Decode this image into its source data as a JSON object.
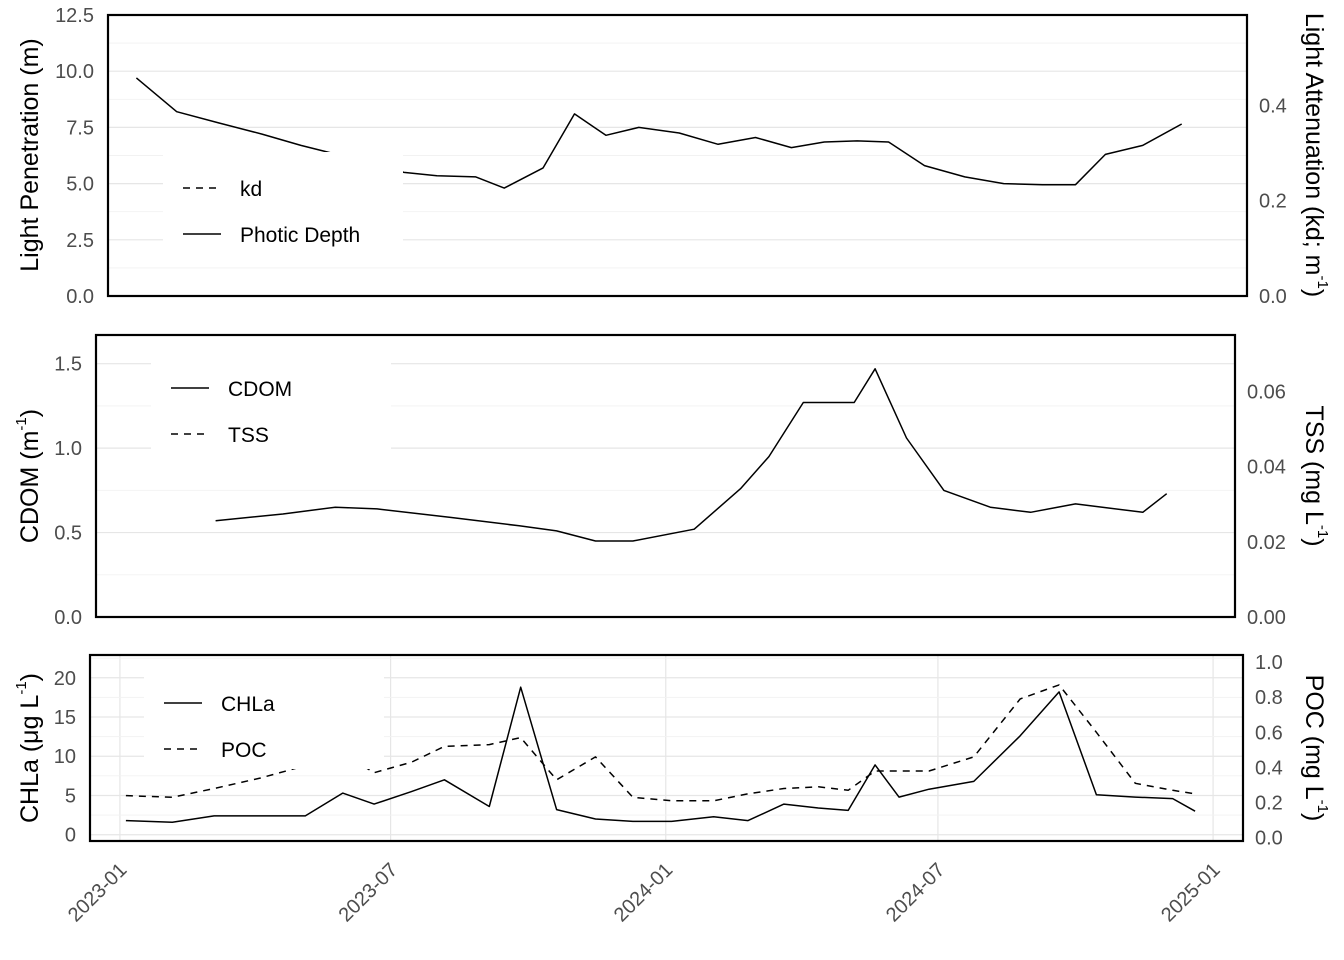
{
  "chart_data": [
    {
      "type": "line",
      "ylabel": "Light Penetration (m)",
      "y2label": "Light Attenuation (kd; m⁻¹)",
      "ylim": [
        0,
        12.5
      ],
      "y2lim": [
        0,
        0.59
      ],
      "yticks": [
        0.0,
        2.5,
        5.0,
        7.5,
        10.0,
        12.5
      ],
      "yticklabels": [
        "0.0",
        "2.5",
        "5.0",
        "7.5",
        "10.0",
        "12.5"
      ],
      "y2ticks": [
        0.0,
        0.2,
        0.4
      ],
      "y2ticklabels": [
        "0.0",
        "0.2",
        "0.4"
      ],
      "xticks_visible": false,
      "grid": true,
      "legend": {
        "position": "left-bottom",
        "entries": [
          {
            "label": "kd",
            "style": "dashed"
          },
          {
            "label": "Photic Depth",
            "style": "solid"
          }
        ]
      },
      "series": [
        {
          "name": "Photic Depth",
          "axis": "left",
          "style": "solid",
          "x": [
            "2023-01-12",
            "2023-02-08",
            "2023-03-08",
            "2023-04-06",
            "2023-05-02",
            "2023-05-26",
            "2023-06-17",
            "2023-07-10",
            "2023-08-01",
            "2023-08-27",
            "2023-09-15",
            "2023-10-11",
            "2023-11-01",
            "2023-11-22",
            "2023-12-14",
            "2024-01-10",
            "2024-02-05",
            "2024-03-01",
            "2024-03-25",
            "2024-04-16",
            "2024-05-08",
            "2024-05-29",
            "2024-06-22",
            "2024-07-19",
            "2024-08-14",
            "2024-09-09",
            "2024-10-01",
            "2024-10-21",
            "2024-11-15",
            "2024-12-11"
          ],
          "y": [
            9.7,
            8.2,
            7.7,
            7.2,
            6.7,
            6.3,
            5.9,
            5.5,
            5.35,
            5.3,
            4.8,
            5.7,
            8.1,
            7.15,
            7.5,
            7.25,
            6.75,
            7.05,
            6.6,
            6.85,
            6.9,
            6.85,
            5.8,
            5.3,
            5.0,
            4.95,
            4.95,
            6.3,
            6.7,
            7.65
          ]
        },
        {
          "name": "kd",
          "axis": "right",
          "style": "dashed",
          "x": [],
          "y": []
        }
      ]
    },
    {
      "type": "line",
      "ylabel": "CDOM (m⁻¹)",
      "y2label": "TSS (mg L⁻¹)",
      "ylim": [
        0,
        1.67
      ],
      "y2lim": [
        0,
        0.075
      ],
      "yticks": [
        0.0,
        0.5,
        1.0,
        1.5
      ],
      "yticklabels": [
        "0.0",
        "0.5",
        "1.0",
        "1.5"
      ],
      "y2ticks": [
        0.0,
        0.02,
        0.04,
        0.06
      ],
      "y2ticklabels": [
        "0.00",
        "0.02",
        "0.04",
        "0.06"
      ],
      "xticks_visible": false,
      "grid": true,
      "legend": {
        "position": "top-left",
        "entries": [
          {
            "label": "CDOM",
            "style": "solid"
          },
          {
            "label": "TSS",
            "style": "dashed"
          }
        ]
      },
      "series": [
        {
          "name": "CDOM",
          "axis": "left",
          "style": "solid",
          "x": [
            "2023-03-06",
            "2023-04-20",
            "2023-05-25",
            "2023-06-22",
            "2023-08-10",
            "2023-09-25",
            "2023-10-20",
            "2023-11-15",
            "2023-12-10",
            "2024-01-20",
            "2024-02-20",
            "2024-03-10",
            "2024-04-02",
            "2024-04-16",
            "2024-05-06",
            "2024-05-20",
            "2024-06-10",
            "2024-07-05",
            "2024-08-05",
            "2024-09-01",
            "2024-10-01",
            "2024-11-15",
            "2024-12-01"
          ],
          "y": [
            0.57,
            0.61,
            0.65,
            0.64,
            0.59,
            0.54,
            0.51,
            0.45,
            0.45,
            0.52,
            0.76,
            0.95,
            1.27,
            1.27,
            1.27,
            1.47,
            1.06,
            0.75,
            0.65,
            0.62,
            0.67,
            0.62,
            0.73
          ]
        },
        {
          "name": "TSS",
          "axis": "right",
          "style": "dashed",
          "x": [],
          "y": []
        }
      ]
    },
    {
      "type": "line",
      "ylabel": "CHLa (μg L⁻¹)",
      "y2label": "POC (mg L⁻¹)",
      "xlabel": "",
      "ylim": [
        -0.8,
        22.9
      ],
      "y2lim": [
        -0.0185,
        1.04
      ],
      "yticks": [
        0,
        5,
        10,
        15,
        20
      ],
      "yticklabels": [
        "0",
        "5",
        "10",
        "15",
        "20"
      ],
      "y2ticks": [
        0.0,
        0.2,
        0.4,
        0.6,
        0.8,
        1.0
      ],
      "y2ticklabels": [
        "0.0",
        "0.2",
        "0.4",
        "0.6",
        "0.8",
        "1.0"
      ],
      "xticks": [
        "2023-01-01",
        "2023-07-01",
        "2024-01-01",
        "2024-07-01",
        "2025-01-01"
      ],
      "xticklabels": [
        "2023-01",
        "2023-07",
        "2024-01",
        "2024-07",
        "2025-01"
      ],
      "grid": true,
      "legend": {
        "position": "top-left",
        "entries": [
          {
            "label": "CHLa",
            "style": "solid"
          },
          {
            "label": "POC",
            "style": "dashed"
          }
        ]
      },
      "series": [
        {
          "name": "CHLa",
          "axis": "left",
          "style": "solid",
          "x": [
            "2023-01-05",
            "2023-02-05",
            "2023-03-05",
            "2023-04-05",
            "2023-05-05",
            "2023-05-30",
            "2023-06-20",
            "2023-07-15",
            "2023-08-06",
            "2023-09-05",
            "2023-09-26",
            "2023-10-20",
            "2023-11-15",
            "2023-12-10",
            "2024-01-05",
            "2024-02-02",
            "2024-02-25",
            "2024-03-20",
            "2024-04-12",
            "2024-05-02",
            "2024-05-20",
            "2024-06-05",
            "2024-06-25",
            "2024-07-25",
            "2024-08-25",
            "2024-09-20",
            "2024-10-15",
            "2024-11-10",
            "2024-12-05",
            "2024-12-20"
          ],
          "y": [
            1.8,
            1.6,
            2.4,
            2.4,
            2.4,
            5.3,
            3.9,
            5.5,
            7.0,
            3.6,
            18.8,
            3.2,
            2.0,
            1.7,
            1.7,
            2.3,
            1.8,
            3.9,
            3.4,
            3.1,
            8.9,
            4.8,
            5.8,
            6.8,
            12.6,
            18.2,
            5.1,
            4.8,
            4.6,
            3.0
          ]
        },
        {
          "name": "POC",
          "axis": "right",
          "style": "dashed",
          "x": [
            "2023-01-05",
            "2023-02-05",
            "2023-03-05",
            "2023-04-05",
            "2023-05-05",
            "2023-05-30",
            "2023-06-20",
            "2023-07-15",
            "2023-08-06",
            "2023-09-05",
            "2023-09-26",
            "2023-10-20",
            "2023-11-15",
            "2023-12-10",
            "2024-01-05",
            "2024-02-02",
            "2024-02-25",
            "2024-03-20",
            "2024-04-12",
            "2024-05-02",
            "2024-05-20",
            "2024-06-05",
            "2024-06-25",
            "2024-07-25",
            "2024-08-25",
            "2024-09-20",
            "2024-10-15",
            "2024-11-10",
            "2024-12-05",
            "2024-12-20"
          ],
          "y": [
            0.24,
            0.23,
            0.28,
            0.34,
            0.41,
            0.48,
            0.37,
            0.43,
            0.52,
            0.53,
            0.57,
            0.33,
            0.46,
            0.23,
            0.21,
            0.21,
            0.25,
            0.28,
            0.29,
            0.27,
            0.38,
            0.38,
            0.38,
            0.46,
            0.79,
            0.87,
            0.6,
            0.31,
            0.27,
            0.25
          ]
        }
      ]
    }
  ]
}
